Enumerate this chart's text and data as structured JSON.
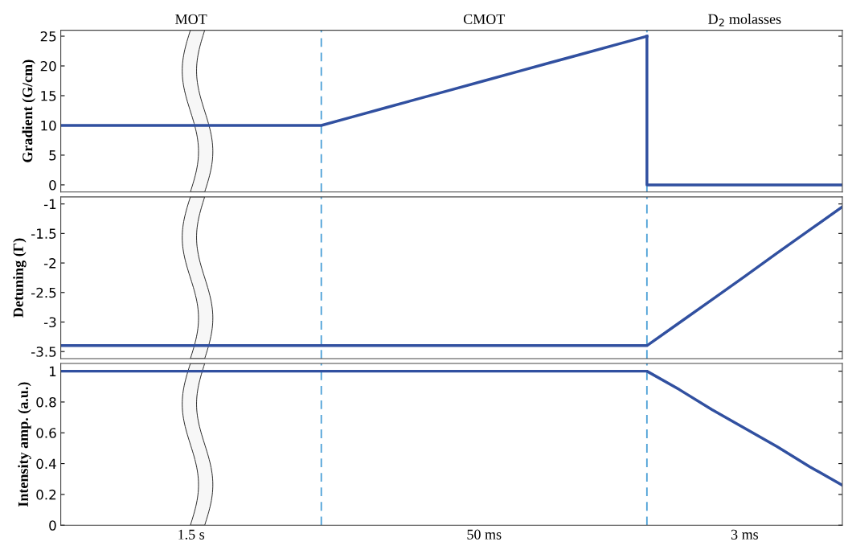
{
  "chart_data": [
    {
      "type": "line",
      "ylabel": "Gradient (G/cm)",
      "annotations": [
        "MOT",
        "CMOT",
        "D$_{2}$ molasses"
      ],
      "categories": [
        null,
        null,
        null,
        null,
        null,
        null,
        null,
        null,
        null,
        null,
        null,
        null,
        null,
        null,
        null,
        null,
        null,
        null,
        null,
        null,
        null,
        null,
        null,
        null,
        null
      ],
      "ylim": [
        -1.2,
        26
      ],
      "yticks": [
        0,
        5,
        10,
        15,
        20,
        25
      ],
      "tick_labels": "y",
      "series": [
        {
          "color": "#3150a0",
          "values": [
            10,
            10,
            10,
            10,
            10,
            10,
            10,
            10,
            10,
            11.5,
            13,
            14.5,
            16,
            17.5,
            19,
            20.5,
            22,
            23.5,
            25,
            null,
            null,
            null,
            null,
            null,
            null
          ]
        },
        {
          "type": "step",
          "color": "#3150a0",
          "values": [
            null,
            null,
            null,
            null,
            null,
            null,
            null,
            null,
            null,
            null,
            null,
            null,
            null,
            null,
            null,
            null,
            null,
            null,
            25,
            0,
            0,
            0,
            0,
            0,
            0
          ]
        }
      ]
    },
    {
      "type": "line",
      "ylabel": "Detuning (Γ)",
      "categories": [
        null,
        null,
        null,
        null,
        null,
        null,
        null,
        null,
        null,
        null,
        null,
        null,
        null,
        null,
        null,
        null,
        null,
        null,
        null,
        null,
        null,
        null,
        null,
        null,
        null
      ],
      "ylim": [
        -3.62,
        -0.88
      ],
      "yticks": [
        {
          "value": -3.5,
          "label": "-3.5"
        },
        {
          "value": -3,
          "label": "-3"
        },
        {
          "value": -2.5,
          "label": "-2.5"
        },
        {
          "value": -2,
          "label": "-2"
        },
        {
          "value": -1.5,
          "label": "-1.5"
        },
        {
          "value": -1,
          "label": "-1"
        }
      ],
      "tick_labels": "y",
      "series": [
        {
          "color": "#3150a0",
          "values": [
            -3.4,
            -3.4,
            -3.4,
            -3.4,
            -3.4,
            -3.4,
            -3.4,
            -3.4,
            -3.4,
            -3.4,
            -3.4,
            -3.4,
            -3.4,
            -3.4,
            -3.4,
            -3.4,
            -3.4,
            -3.4,
            -3.4,
            -3.01,
            -2.62,
            -2.23,
            -1.83,
            -1.44,
            -1.05
          ]
        }
      ]
    },
    {
      "type": "line",
      "ylabel": "Intensity amp. (a.u.)",
      "categories": [
        null,
        null,
        null,
        null,
        "1.5 s",
        null,
        null,
        null,
        null,
        null,
        null,
        null,
        null,
        "50 ms",
        null,
        null,
        null,
        null,
        null,
        null,
        null,
        "3 ms",
        null,
        null,
        null
      ],
      "ylim": [
        0,
        1.05
      ],
      "yticks": [
        0,
        0.2,
        0.4,
        0.6,
        0.8,
        1
      ],
      "series": [
        {
          "color": "#3150a0",
          "values": [
            1,
            1,
            1,
            1,
            1,
            1,
            1,
            1,
            1,
            1,
            1,
            1,
            1,
            1,
            1,
            1,
            1,
            1,
            1,
            0.88,
            0.75,
            0.63,
            0.51,
            0.38,
            0.26
          ]
        }
      ]
    }
  ]
}
